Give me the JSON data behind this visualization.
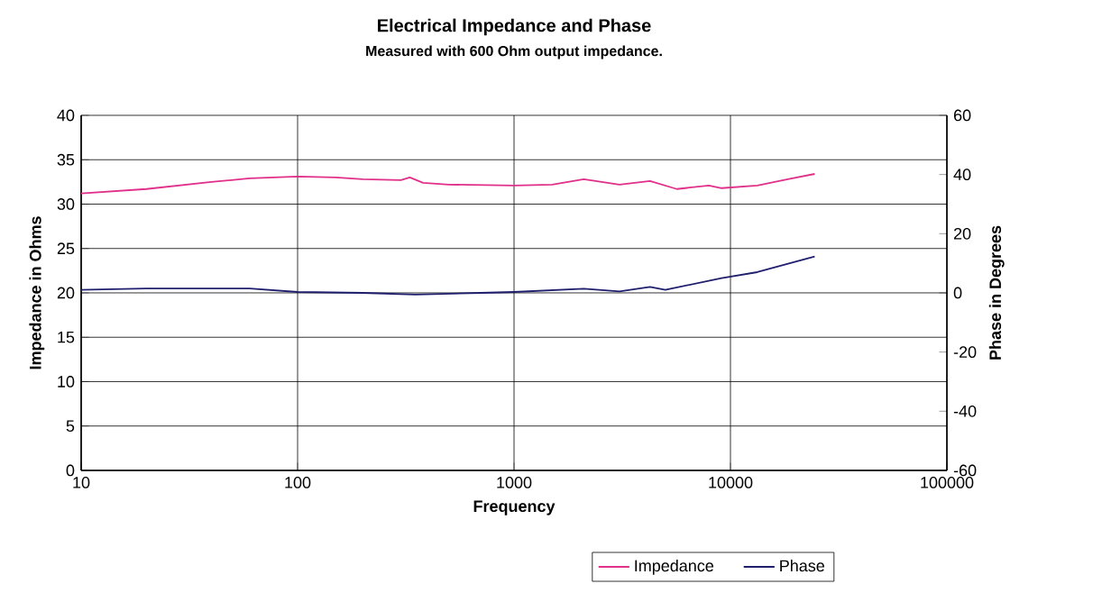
{
  "chart_data": {
    "type": "line",
    "title": "Electrical Impedance and Phase",
    "subtitle": "Measured with 600 Ohm output impedance.",
    "xlabel": "Frequency",
    "ylabel": "Impedance in Ohms",
    "y2label": "Phase in Degrees",
    "log": "x",
    "grid": true,
    "legend": "bottom",
    "marker": "none",
    "line_style": "solid",
    "xlim": [
      10,
      100000
    ],
    "xticks": [
      10,
      100,
      1000,
      10000,
      100000
    ],
    "ylim": [
      0,
      40
    ],
    "yticks": [
      0,
      5,
      10,
      15,
      20,
      25,
      30,
      35,
      40
    ],
    "y2lim": [
      -60,
      60
    ],
    "y2ticks": [
      -60,
      -40,
      -20,
      0,
      20,
      40,
      60
    ],
    "series": [
      {
        "name": "Impedance",
        "color": "#e0308a",
        "x": [
          10,
          20,
          40,
          60,
          100,
          150,
          200,
          300,
          330,
          380,
          500,
          1000,
          1500,
          2100,
          3070,
          4250,
          5650,
          7950,
          9100,
          13300,
          18400,
          24500
        ],
        "values": [
          31.2,
          31.7,
          32.5,
          32.9,
          33.1,
          33.0,
          32.8,
          32.7,
          33.0,
          32.4,
          32.2,
          32.1,
          32.2,
          32.8,
          32.2,
          32.6,
          31.7,
          32.1,
          31.8,
          32.1,
          32.8,
          33.4
        ]
      },
      {
        "name": "Phase",
        "color": "#1f1f6e",
        "axis": "y2",
        "x": [
          10,
          20,
          40,
          60,
          100,
          200,
          350,
          700,
          1000,
          2100,
          3070,
          4250,
          5000,
          9100,
          13300,
          24500
        ],
        "values": [
          1,
          1.5,
          1.5,
          1.5,
          0.3,
          0,
          -0.6,
          0,
          0.3,
          1.4,
          0.5,
          2.0,
          1.0,
          5.0,
          7.0,
          12.3
        ]
      }
    ]
  }
}
